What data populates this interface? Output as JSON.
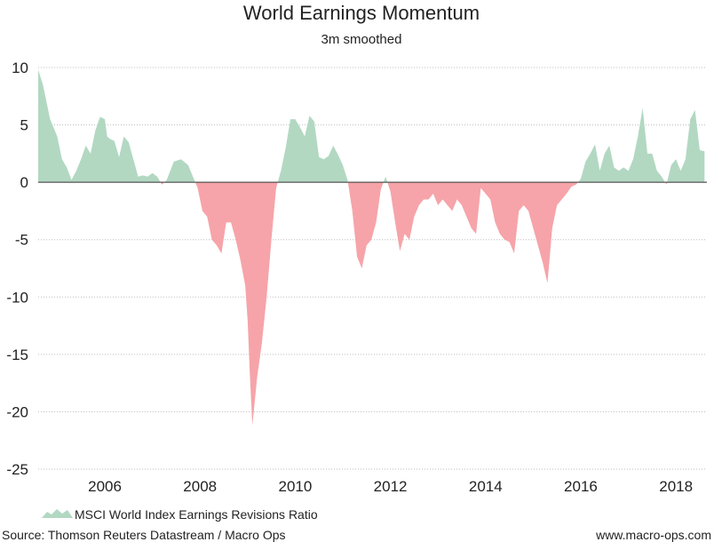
{
  "chart_data": {
    "type": "area",
    "title": "World Earnings Momentum",
    "subtitle": "3m smoothed",
    "xlabel": "",
    "ylabel": "",
    "xlim": [
      2004.6,
      2018.65
    ],
    "ylim": [
      -25,
      10
    ],
    "grid": true,
    "y_ticks": [
      "10",
      "5",
      "0",
      "-5",
      "-10",
      "-15",
      "-20",
      "-25"
    ],
    "x_ticks": [
      "2006",
      "2008",
      "2010",
      "2012",
      "2014",
      "2016",
      "2018"
    ],
    "colors": {
      "positive": "#b2d8c2",
      "negative": "#f6a4a9",
      "zero_line": "#555555",
      "grid": "#bdbdbd"
    },
    "legend": {
      "position": "bottom-left",
      "label": "MSCI World Index Earnings Revisions Ratio"
    },
    "series": [
      {
        "name": "MSCI World Index Earnings Revisions Ratio",
        "x": [
          2004.6,
          2004.7,
          2004.85,
          2005.0,
          2005.1,
          2005.2,
          2005.3,
          2005.4,
          2005.5,
          2005.6,
          2005.7,
          2005.8,
          2005.9,
          2006.0,
          2006.05,
          2006.1,
          2006.2,
          2006.3,
          2006.4,
          2006.5,
          2006.6,
          2006.7,
          2006.8,
          2006.9,
          2007.0,
          2007.1,
          2007.2,
          2007.3,
          2007.45,
          2007.6,
          2007.75,
          2007.85,
          2007.95,
          2008.05,
          2008.15,
          2008.25,
          2008.35,
          2008.45,
          2008.55,
          2008.65,
          2008.75,
          2008.85,
          2008.95,
          2009.0,
          2009.05,
          2009.1,
          2009.2,
          2009.3,
          2009.4,
          2009.5,
          2009.6,
          2009.7,
          2009.8,
          2009.9,
          2010.0,
          2010.1,
          2010.2,
          2010.3,
          2010.4,
          2010.5,
          2010.6,
          2010.7,
          2010.8,
          2010.9,
          2011.0,
          2011.1,
          2011.2,
          2011.3,
          2011.4,
          2011.5,
          2011.6,
          2011.7,
          2011.8,
          2011.9,
          2012.0,
          2012.1,
          2012.2,
          2012.3,
          2012.4,
          2012.5,
          2012.6,
          2012.7,
          2012.8,
          2012.9,
          2013.0,
          2013.1,
          2013.2,
          2013.3,
          2013.4,
          2013.5,
          2013.6,
          2013.7,
          2013.8,
          2013.9,
          2014.0,
          2014.1,
          2014.2,
          2014.3,
          2014.4,
          2014.5,
          2014.6,
          2014.7,
          2014.8,
          2014.9,
          2015.0,
          2015.1,
          2015.2,
          2015.3,
          2015.4,
          2015.5,
          2015.6,
          2015.7,
          2015.8,
          2015.9,
          2016.0,
          2016.1,
          2016.2,
          2016.3,
          2016.4,
          2016.5,
          2016.6,
          2016.7,
          2016.8,
          2016.9,
          2017.0,
          2017.1,
          2017.2,
          2017.3,
          2017.4,
          2017.5,
          2017.6,
          2017.7,
          2017.8,
          2017.9,
          2018.0,
          2018.1,
          2018.2,
          2018.3,
          2018.4,
          2018.5,
          2018.6
        ],
        "values": [
          9.8,
          8.5,
          5.5,
          4.0,
          2.0,
          1.3,
          0.2,
          1.0,
          2.0,
          3.2,
          2.5,
          4.5,
          5.7,
          5.5,
          4.0,
          3.8,
          3.6,
          2.2,
          4.0,
          3.5,
          2.0,
          0.5,
          0.6,
          0.5,
          0.8,
          0.5,
          -0.2,
          0.2,
          1.8,
          2.0,
          1.5,
          0.5,
          -0.5,
          -2.5,
          -3.0,
          -5.0,
          -5.5,
          -6.2,
          -3.5,
          -3.5,
          -5.0,
          -6.8,
          -9.0,
          -12.0,
          -17.0,
          -21.2,
          -17.0,
          -14.0,
          -10.0,
          -5.0,
          -0.5,
          1.0,
          3.0,
          5.5,
          5.5,
          4.8,
          4.0,
          5.8,
          5.3,
          2.2,
          2.0,
          2.3,
          3.2,
          2.4,
          1.5,
          0.2,
          -2.5,
          -6.5,
          -7.5,
          -5.5,
          -5.0,
          -3.5,
          -0.6,
          0.5,
          -0.8,
          -3.5,
          -6.0,
          -4.5,
          -5.0,
          -3.0,
          -2.0,
          -1.5,
          -1.5,
          -1.0,
          -2.0,
          -1.5,
          -2.0,
          -2.5,
          -1.5,
          -2.0,
          -3.0,
          -4.0,
          -4.5,
          -0.5,
          -1.0,
          -1.5,
          -3.5,
          -4.5,
          -5.0,
          -5.2,
          -6.2,
          -2.5,
          -2.0,
          -2.5,
          -4.0,
          -5.5,
          -7.0,
          -8.8,
          -4.0,
          -2.0,
          -1.5,
          -1.0,
          -0.4,
          -0.2,
          0.3,
          1.8,
          2.5,
          3.3,
          1.0,
          2.5,
          3.2,
          1.3,
          1.0,
          1.3,
          1.0,
          2.0,
          4.0,
          6.5,
          2.5,
          2.5,
          1.0,
          0.5,
          -0.2,
          1.5,
          2.0,
          1.0,
          2.0,
          5.5,
          6.3,
          2.8,
          2.7
        ]
      }
    ]
  },
  "footer": {
    "source": "Source: Thomson Reuters Datastream / Macro Ops",
    "website": "www.macro-ops.com"
  }
}
